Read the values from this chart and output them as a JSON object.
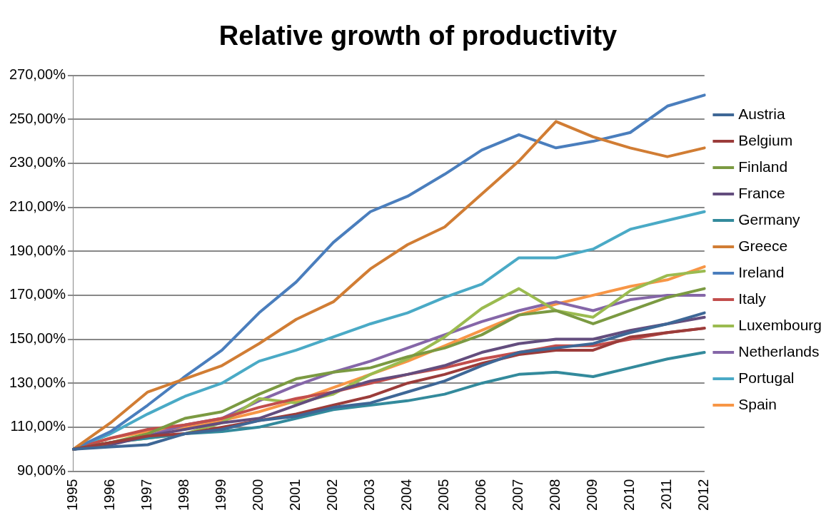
{
  "chart_data": {
    "type": "line",
    "title": "Relative growth of productivity",
    "categories": [
      "1995",
      "1996",
      "1997",
      "1998",
      "1999",
      "2000",
      "2001",
      "2002",
      "2003",
      "2004",
      "2005",
      "2006",
      "2007",
      "2008",
      "2009",
      "2010",
      "2011",
      "2012"
    ],
    "ylim": [
      90,
      270
    ],
    "yticks": [
      {
        "value": 90,
        "label": "90,00%"
      },
      {
        "value": 110,
        "label": "110,00%"
      },
      {
        "value": 130,
        "label": "130,00%"
      },
      {
        "value": 150,
        "label": "150,00%"
      },
      {
        "value": 170,
        "label": "170,00%"
      },
      {
        "value": 190,
        "label": "190,00%"
      },
      {
        "value": 210,
        "label": "210,00%"
      },
      {
        "value": 230,
        "label": "230,00%"
      },
      {
        "value": 250,
        "label": "250,00%"
      },
      {
        "value": 270,
        "label": "270,00%"
      }
    ],
    "grid": "y",
    "legend": "right",
    "marker": "none",
    "line_style": "solid",
    "series": [
      {
        "name": "Austria",
        "color": "#3e6796",
        "values": [
          100,
          101,
          102,
          107,
          109,
          113,
          115,
          119,
          121,
          126,
          131,
          138,
          144,
          146,
          148,
          153,
          157,
          162
        ]
      },
      {
        "name": "Belgium",
        "color": "#9b3c3a",
        "values": [
          100,
          103,
          106,
          107,
          110,
          113,
          116,
          120,
          124,
          130,
          134,
          139,
          143,
          145,
          145,
          151,
          153,
          155
        ]
      },
      {
        "name": "Finland",
        "color": "#7b9a42",
        "values": [
          100,
          103,
          107,
          114,
          117,
          125,
          132,
          135,
          137,
          142,
          146,
          152,
          161,
          163,
          157,
          163,
          169,
          173
        ]
      },
      {
        "name": "France",
        "color": "#634d7e",
        "values": [
          100,
          102,
          106,
          109,
          112,
          114,
          120,
          126,
          131,
          134,
          138,
          144,
          148,
          150,
          150,
          154,
          157,
          160
        ]
      },
      {
        "name": "Germany",
        "color": "#338a9c",
        "values": [
          100,
          103,
          105,
          107,
          108,
          110,
          114,
          118,
          120,
          122,
          125,
          130,
          134,
          135,
          133,
          137,
          141,
          144
        ]
      },
      {
        "name": "Greece",
        "color": "#d17d34",
        "values": [
          100,
          112,
          126,
          132,
          138,
          148,
          159,
          167,
          182,
          193,
          201,
          216,
          231,
          249,
          242,
          237,
          233,
          237
        ]
      },
      {
        "name": "Ireland",
        "color": "#4a7ebd",
        "values": [
          100,
          108,
          120,
          133,
          145,
          162,
          176,
          194,
          208,
          215,
          225,
          236,
          243,
          237,
          240,
          244,
          256,
          261
        ]
      },
      {
        "name": "Italy",
        "color": "#c24e4c",
        "values": [
          100,
          105,
          109,
          111,
          114,
          119,
          123,
          126,
          130,
          134,
          137,
          141,
          144,
          147,
          147,
          150,
          153,
          155
        ]
      },
      {
        "name": "Luxembourg",
        "color": "#9bbb50",
        "values": [
          100,
          103,
          105,
          107,
          112,
          123,
          121,
          125,
          134,
          141,
          151,
          164,
          173,
          163,
          160,
          172,
          179,
          181
        ]
      },
      {
        "name": "Netherlands",
        "color": "#8566a8",
        "values": [
          100,
          103,
          106,
          111,
          114,
          122,
          129,
          135,
          140,
          146,
          152,
          158,
          163,
          167,
          163,
          168,
          170,
          170
        ]
      },
      {
        "name": "Portugal",
        "color": "#4aaac6",
        "values": [
          100,
          107,
          116,
          124,
          130,
          140,
          145,
          151,
          157,
          162,
          169,
          175,
          187,
          187,
          191,
          200,
          204,
          208
        ]
      },
      {
        "name": "Spain",
        "color": "#f79646",
        "values": [
          100,
          105,
          108,
          110,
          113,
          117,
          122,
          128,
          134,
          140,
          147,
          154,
          161,
          166,
          170,
          174,
          177,
          183
        ]
      }
    ]
  }
}
